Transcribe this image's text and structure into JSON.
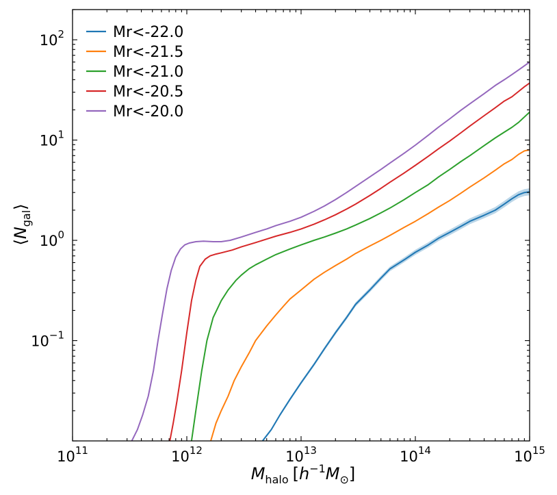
{
  "chart_data": {
    "type": "line",
    "title": "",
    "xlabel": {
      "base": "M",
      "sub": "halo",
      "unit_open": "[",
      "unit_h": "h",
      "unit_exp": "−1",
      "unit_m": "M",
      "unit_sub": "⊙",
      "unit_close": "]"
    },
    "ylabel": {
      "left": "⟨",
      "base": "N",
      "sub": "gal",
      "right": "⟩"
    },
    "xscale": "log",
    "yscale": "log",
    "xlim": [
      100000000000.0,
      1000000000000000.0
    ],
    "ylim": [
      0.01,
      200
    ],
    "grid": false,
    "legend_position": "top-left",
    "x_ticks": [
      {
        "value": 100000000000.0,
        "base": "10",
        "exp": "11"
      },
      {
        "value": 1000000000000.0,
        "base": "10",
        "exp": "12"
      },
      {
        "value": 10000000000000.0,
        "base": "10",
        "exp": "13"
      },
      {
        "value": 100000000000000.0,
        "base": "10",
        "exp": "14"
      },
      {
        "value": 1000000000000000.0,
        "base": "10",
        "exp": "15"
      }
    ],
    "y_ticks": [
      {
        "value": 0.1,
        "base": "10",
        "exp": "−1"
      },
      {
        "value": 1,
        "base": "10",
        "exp": "0"
      },
      {
        "value": 10,
        "base": "10",
        "exp": "1"
      },
      {
        "value": 100,
        "base": "10",
        "exp": "2"
      }
    ],
    "series": [
      {
        "name": "Mr<-22.0",
        "color": "#1f77b4",
        "band": true,
        "points": [
          [
            4600000000000.0,
            0.01
          ],
          [
            5500000000000.0,
            0.013
          ],
          [
            6500000000000.0,
            0.018
          ],
          [
            8000000000000.0,
            0.026
          ],
          [
            10000000000000.0,
            0.038
          ],
          [
            13000000000000.0,
            0.058
          ],
          [
            16000000000000.0,
            0.083
          ],
          [
            20000000000000.0,
            0.12
          ],
          [
            25000000000000.0,
            0.17
          ],
          [
            30000000000000.0,
            0.23
          ],
          [
            40000000000000.0,
            0.32
          ],
          [
            50000000000000.0,
            0.42
          ],
          [
            60000000000000.0,
            0.52
          ],
          [
            80000000000000.0,
            0.64
          ],
          [
            100000000000000.0,
            0.76
          ],
          [
            130000000000000.0,
            0.9
          ],
          [
            160000000000000.0,
            1.05
          ],
          [
            200000000000000.0,
            1.2
          ],
          [
            250000000000000.0,
            1.38
          ],
          [
            300000000000000.0,
            1.55
          ],
          [
            400000000000000.0,
            1.78
          ],
          [
            500000000000000.0,
            2.0
          ],
          [
            600000000000000.0,
            2.3
          ],
          [
            700000000000000.0,
            2.6
          ],
          [
            800000000000000.0,
            2.85
          ],
          [
            900000000000000.0,
            3.0
          ],
          [
            1000000000000000.0,
            3.05
          ]
        ]
      },
      {
        "name": "Mr<-21.5",
        "color": "#ff7f0e",
        "band": false,
        "points": [
          [
            1620000000000.0,
            0.01
          ],
          [
            1800000000000.0,
            0.015
          ],
          [
            2000000000000.0,
            0.02
          ],
          [
            2300000000000.0,
            0.028
          ],
          [
            2600000000000.0,
            0.04
          ],
          [
            3000000000000.0,
            0.055
          ],
          [
            3500000000000.0,
            0.075
          ],
          [
            4000000000000.0,
            0.1
          ],
          [
            5000000000000.0,
            0.14
          ],
          [
            6000000000000.0,
            0.18
          ],
          [
            7000000000000.0,
            0.22
          ],
          [
            8000000000000.0,
            0.26
          ],
          [
            10000000000000.0,
            0.32
          ],
          [
            13000000000000.0,
            0.41
          ],
          [
            16000000000000.0,
            0.48
          ],
          [
            20000000000000.0,
            0.56
          ],
          [
            25000000000000.0,
            0.65
          ],
          [
            30000000000000.0,
            0.74
          ],
          [
            40000000000000.0,
            0.88
          ],
          [
            50000000000000.0,
            1.0
          ],
          [
            60000000000000.0,
            1.12
          ],
          [
            80000000000000.0,
            1.35
          ],
          [
            100000000000000.0,
            1.55
          ],
          [
            130000000000000.0,
            1.85
          ],
          [
            160000000000000.0,
            2.15
          ],
          [
            200000000000000.0,
            2.5
          ],
          [
            250000000000000.0,
            2.95
          ],
          [
            300000000000000.0,
            3.4
          ],
          [
            400000000000000.0,
            4.2
          ],
          [
            500000000000000.0,
            5.0
          ],
          [
            600000000000000.0,
            5.8
          ],
          [
            700000000000000.0,
            6.4
          ],
          [
            800000000000000.0,
            7.2
          ],
          [
            900000000000000.0,
            7.8
          ],
          [
            1000000000000000.0,
            8.0
          ]
        ]
      },
      {
        "name": "Mr<-21.0",
        "color": "#2ca02c",
        "band": false,
        "points": [
          [
            1100000000000.0,
            0.01
          ],
          [
            1200000000000.0,
            0.02
          ],
          [
            1350000000000.0,
            0.05
          ],
          [
            1500000000000.0,
            0.1
          ],
          [
            1700000000000.0,
            0.17
          ],
          [
            2000000000000.0,
            0.25
          ],
          [
            2300000000000.0,
            0.32
          ],
          [
            2700000000000.0,
            0.4
          ],
          [
            3000000000000.0,
            0.45
          ],
          [
            3500000000000.0,
            0.52
          ],
          [
            4000000000000.0,
            0.57
          ],
          [
            5000000000000.0,
            0.65
          ],
          [
            6000000000000.0,
            0.72
          ],
          [
            8000000000000.0,
            0.82
          ],
          [
            10000000000000.0,
            0.9
          ],
          [
            13000000000000.0,
            1.0
          ],
          [
            16000000000000.0,
            1.08
          ],
          [
            20000000000000.0,
            1.18
          ],
          [
            25000000000000.0,
            1.3
          ],
          [
            30000000000000.0,
            1.42
          ],
          [
            40000000000000.0,
            1.65
          ],
          [
            50000000000000.0,
            1.88
          ],
          [
            60000000000000.0,
            2.1
          ],
          [
            80000000000000.0,
            2.55
          ],
          [
            100000000000000.0,
            3.0
          ],
          [
            130000000000000.0,
            3.6
          ],
          [
            160000000000000.0,
            4.3
          ],
          [
            200000000000000.0,
            5.1
          ],
          [
            250000000000000.0,
            6.1
          ],
          [
            300000000000000.0,
            7.0
          ],
          [
            400000000000000.0,
            8.8
          ],
          [
            500000000000000.0,
            10.5
          ],
          [
            600000000000000.0,
            12.0
          ],
          [
            700000000000000.0,
            13.4
          ],
          [
            800000000000000.0,
            15.0
          ],
          [
            900000000000000.0,
            17.0
          ],
          [
            1000000000000000.0,
            19.0
          ]
        ]
      },
      {
        "name": "Mr<-20.5",
        "color": "#d62728",
        "band": false,
        "points": [
          [
            710000000000.0,
            0.01
          ],
          [
            760000000000.0,
            0.015
          ],
          [
            820000000000.0,
            0.025
          ],
          [
            900000000000.0,
            0.05
          ],
          [
            1000000000000.0,
            0.12
          ],
          [
            1100000000000.0,
            0.25
          ],
          [
            1200000000000.0,
            0.4
          ],
          [
            1300000000000.0,
            0.55
          ],
          [
            1450000000000.0,
            0.65
          ],
          [
            1600000000000.0,
            0.7
          ],
          [
            1800000000000.0,
            0.73
          ],
          [
            2000000000000.0,
            0.75
          ],
          [
            2500000000000.0,
            0.8
          ],
          [
            3000000000000.0,
            0.86
          ],
          [
            4000000000000.0,
            0.95
          ],
          [
            5000000000000.0,
            1.03
          ],
          [
            6000000000000.0,
            1.1
          ],
          [
            8000000000000.0,
            1.2
          ],
          [
            10000000000000.0,
            1.3
          ],
          [
            13000000000000.0,
            1.45
          ],
          [
            16000000000000.0,
            1.6
          ],
          [
            20000000000000.0,
            1.8
          ],
          [
            25000000000000.0,
            2.05
          ],
          [
            30000000000000.0,
            2.3
          ],
          [
            40000000000000.0,
            2.8
          ],
          [
            50000000000000.0,
            3.3
          ],
          [
            60000000000000.0,
            3.8
          ],
          [
            80000000000000.0,
            4.7
          ],
          [
            100000000000000.0,
            5.6
          ],
          [
            130000000000000.0,
            6.9
          ],
          [
            160000000000000.0,
            8.2
          ],
          [
            200000000000000.0,
            9.8
          ],
          [
            250000000000000.0,
            11.8
          ],
          [
            300000000000000.0,
            13.8
          ],
          [
            400000000000000.0,
            17.5
          ],
          [
            500000000000000.0,
            21.0
          ],
          [
            600000000000000.0,
            24.5
          ],
          [
            700000000000000.0,
            27.0
          ],
          [
            800000000000000.0,
            30.5
          ],
          [
            900000000000000.0,
            34.0
          ],
          [
            1000000000000000.0,
            37.0
          ]
        ]
      },
      {
        "name": "Mr<-20.0",
        "color": "#9467bd",
        "band": false,
        "points": [
          [
            330000000000.0,
            0.01
          ],
          [
            370000000000.0,
            0.013
          ],
          [
            410000000000.0,
            0.018
          ],
          [
            460000000000.0,
            0.028
          ],
          [
            510000000000.0,
            0.05
          ],
          [
            560000000000.0,
            0.1
          ],
          [
            610000000000.0,
            0.18
          ],
          [
            670000000000.0,
            0.33
          ],
          [
            730000000000.0,
            0.5
          ],
          [
            800000000000.0,
            0.68
          ],
          [
            880000000000.0,
            0.82
          ],
          [
            960000000000.0,
            0.9
          ],
          [
            1050000000000.0,
            0.94
          ],
          [
            1200000000000.0,
            0.97
          ],
          [
            1400000000000.0,
            0.98
          ],
          [
            1700000000000.0,
            0.97
          ],
          [
            2000000000000.0,
            0.97
          ],
          [
            2400000000000.0,
            1.0
          ],
          [
            3000000000000.0,
            1.08
          ],
          [
            4000000000000.0,
            1.2
          ],
          [
            5000000000000.0,
            1.3
          ],
          [
            6000000000000.0,
            1.4
          ],
          [
            8000000000000.0,
            1.55
          ],
          [
            10000000000000.0,
            1.7
          ],
          [
            13000000000000.0,
            1.95
          ],
          [
            16000000000000.0,
            2.2
          ],
          [
            20000000000000.0,
            2.55
          ],
          [
            25000000000000.0,
            3.0
          ],
          [
            30000000000000.0,
            3.45
          ],
          [
            40000000000000.0,
            4.3
          ],
          [
            50000000000000.0,
            5.1
          ],
          [
            60000000000000.0,
            5.9
          ],
          [
            80000000000000.0,
            7.4
          ],
          [
            100000000000000.0,
            8.9
          ],
          [
            130000000000000.0,
            11.2
          ],
          [
            160000000000000.0,
            13.5
          ],
          [
            200000000000000.0,
            16.3
          ],
          [
            250000000000000.0,
            19.8
          ],
          [
            300000000000000.0,
            23.0
          ],
          [
            400000000000000.0,
            29.0
          ],
          [
            500000000000000.0,
            35.0
          ],
          [
            600000000000000.0,
            40.0
          ],
          [
            700000000000000.0,
            45.0
          ],
          [
            800000000000000.0,
            50.0
          ],
          [
            900000000000000.0,
            55.0
          ],
          [
            1000000000000000.0,
            60.0
          ]
        ]
      }
    ]
  }
}
